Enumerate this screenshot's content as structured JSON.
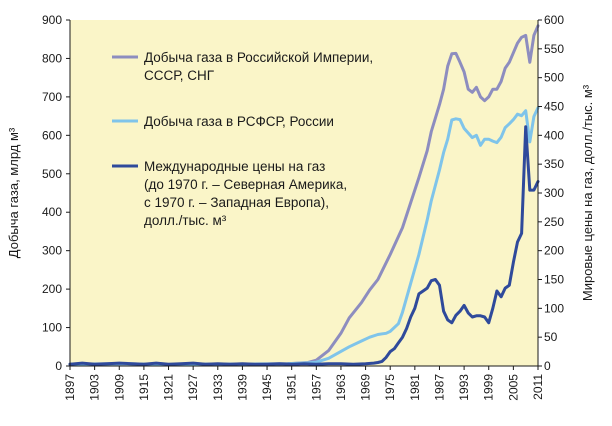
{
  "chart_data": {
    "type": "line",
    "xlabel": "",
    "ylabel_left": "Добыча газа, млрд м³",
    "ylabel_right": "Мировые цены на газ, долл./тыс. м³",
    "xlim": [
      1897,
      2011
    ],
    "ylim_left": [
      0,
      900
    ],
    "ylim_right": [
      0,
      600
    ],
    "x_ticks": [
      "1897",
      "1903",
      "1909",
      "1915",
      "1921",
      "1927",
      "1933",
      "1939",
      "1945",
      "1951",
      "1957",
      "1963",
      "1969",
      "1975",
      "1981",
      "1987",
      "1993",
      "1999",
      "2005",
      "2011"
    ],
    "y_ticks_left": [
      "0",
      "100",
      "200",
      "300",
      "400",
      "500",
      "600",
      "700",
      "800",
      "900"
    ],
    "y_ticks_right": [
      "0",
      "50",
      "100",
      "150",
      "200",
      "250",
      "300",
      "350",
      "400",
      "450",
      "500",
      "550",
      "600"
    ],
    "grid": false,
    "background": "#faf5c8",
    "legend_position": "top-left",
    "series": [
      {
        "name": "Добыча газа в Российской Империи, СССР, СНГ",
        "color": "#8d8dbf",
        "axis": "left",
        "points": [
          [
            1897,
            5
          ],
          [
            1910,
            6
          ],
          [
            1920,
            4
          ],
          [
            1930,
            5
          ],
          [
            1940,
            5
          ],
          [
            1950,
            6
          ],
          [
            1955,
            9
          ],
          [
            1957,
            15
          ],
          [
            1960,
            40
          ],
          [
            1963,
            85
          ],
          [
            1965,
            125
          ],
          [
            1968,
            165
          ],
          [
            1970,
            198
          ],
          [
            1972,
            225
          ],
          [
            1975,
            290
          ],
          [
            1978,
            360
          ],
          [
            1980,
            425
          ],
          [
            1982,
            490
          ],
          [
            1984,
            560
          ],
          [
            1985,
            610
          ],
          [
            1987,
            680
          ],
          [
            1988,
            720
          ],
          [
            1989,
            780
          ],
          [
            1990,
            812
          ],
          [
            1991,
            813
          ],
          [
            1992,
            790
          ],
          [
            1993,
            765
          ],
          [
            1994,
            720
          ],
          [
            1995,
            712
          ],
          [
            1996,
            725
          ],
          [
            1997,
            700
          ],
          [
            1998,
            690
          ],
          [
            1999,
            700
          ],
          [
            2000,
            720
          ],
          [
            2001,
            720
          ],
          [
            2002,
            740
          ],
          [
            2003,
            775
          ],
          [
            2004,
            790
          ],
          [
            2005,
            815
          ],
          [
            2006,
            840
          ],
          [
            2007,
            855
          ],
          [
            2008,
            860
          ],
          [
            2009,
            790
          ],
          [
            2010,
            860
          ],
          [
            2011,
            885
          ]
        ]
      },
      {
        "name": "Добыча газа в РСФСР, России",
        "color": "#7fc4ea",
        "axis": "left",
        "points": [
          [
            1897,
            5
          ],
          [
            1910,
            6
          ],
          [
            1920,
            4
          ],
          [
            1930,
            5
          ],
          [
            1940,
            5
          ],
          [
            1950,
            6
          ],
          [
            1955,
            8
          ],
          [
            1957,
            10
          ],
          [
            1960,
            20
          ],
          [
            1963,
            38
          ],
          [
            1965,
            50
          ],
          [
            1968,
            65
          ],
          [
            1970,
            75
          ],
          [
            1972,
            82
          ],
          [
            1974,
            85
          ],
          [
            1975,
            90
          ],
          [
            1977,
            110
          ],
          [
            1978,
            140
          ],
          [
            1980,
            215
          ],
          [
            1982,
            290
          ],
          [
            1984,
            380
          ],
          [
            1985,
            430
          ],
          [
            1987,
            510
          ],
          [
            1988,
            555
          ],
          [
            1989,
            590
          ],
          [
            1990,
            640
          ],
          [
            1991,
            643
          ],
          [
            1992,
            641
          ],
          [
            1993,
            618
          ],
          [
            1994,
            606
          ],
          [
            1995,
            594
          ],
          [
            1996,
            600
          ],
          [
            1997,
            574
          ],
          [
            1998,
            590
          ],
          [
            1999,
            590
          ],
          [
            2000,
            585
          ],
          [
            2001,
            581
          ],
          [
            2002,
            595
          ],
          [
            2003,
            620
          ],
          [
            2004,
            630
          ],
          [
            2005,
            641
          ],
          [
            2006,
            655
          ],
          [
            2007,
            651
          ],
          [
            2008,
            664
          ],
          [
            2009,
            583
          ],
          [
            2010,
            649
          ],
          [
            2011,
            672
          ]
        ]
      },
      {
        "name": "Международные цены на газ (до 1970 г. – Северная Америка, с 1970 г. – Западная Европа), долл./тыс. м³",
        "color": "#2f4a9b",
        "axis": "right",
        "points": [
          [
            1897,
            3
          ],
          [
            1900,
            5
          ],
          [
            1903,
            3
          ],
          [
            1906,
            4
          ],
          [
            1909,
            5
          ],
          [
            1912,
            4
          ],
          [
            1915,
            3
          ],
          [
            1918,
            5
          ],
          [
            1921,
            3
          ],
          [
            1924,
            4
          ],
          [
            1927,
            5
          ],
          [
            1930,
            3
          ],
          [
            1933,
            4
          ],
          [
            1936,
            3
          ],
          [
            1939,
            4
          ],
          [
            1942,
            3
          ],
          [
            1945,
            3
          ],
          [
            1948,
            4
          ],
          [
            1951,
            3
          ],
          [
            1954,
            4
          ],
          [
            1957,
            3
          ],
          [
            1960,
            4
          ],
          [
            1963,
            4
          ],
          [
            1966,
            3
          ],
          [
            1969,
            4
          ],
          [
            1971,
            5
          ],
          [
            1972,
            6
          ],
          [
            1973,
            8
          ],
          [
            1974,
            15
          ],
          [
            1975,
            25
          ],
          [
            1976,
            30
          ],
          [
            1977,
            40
          ],
          [
            1978,
            50
          ],
          [
            1979,
            65
          ],
          [
            1980,
            85
          ],
          [
            1981,
            100
          ],
          [
            1982,
            125
          ],
          [
            1983,
            130
          ],
          [
            1984,
            135
          ],
          [
            1985,
            148
          ],
          [
            1986,
            150
          ],
          [
            1987,
            140
          ],
          [
            1988,
            95
          ],
          [
            1989,
            80
          ],
          [
            1990,
            75
          ],
          [
            1991,
            88
          ],
          [
            1992,
            95
          ],
          [
            1993,
            105
          ],
          [
            1994,
            92
          ],
          [
            1995,
            85
          ],
          [
            1996,
            87
          ],
          [
            1997,
            87
          ],
          [
            1998,
            85
          ],
          [
            1999,
            75
          ],
          [
            2000,
            100
          ],
          [
            2001,
            130
          ],
          [
            2002,
            120
          ],
          [
            2003,
            135
          ],
          [
            2004,
            140
          ],
          [
            2005,
            180
          ],
          [
            2006,
            215
          ],
          [
            2007,
            230
          ],
          [
            2008,
            415
          ],
          [
            2009,
            305
          ],
          [
            2010,
            305
          ],
          [
            2011,
            320
          ]
        ]
      }
    ]
  }
}
